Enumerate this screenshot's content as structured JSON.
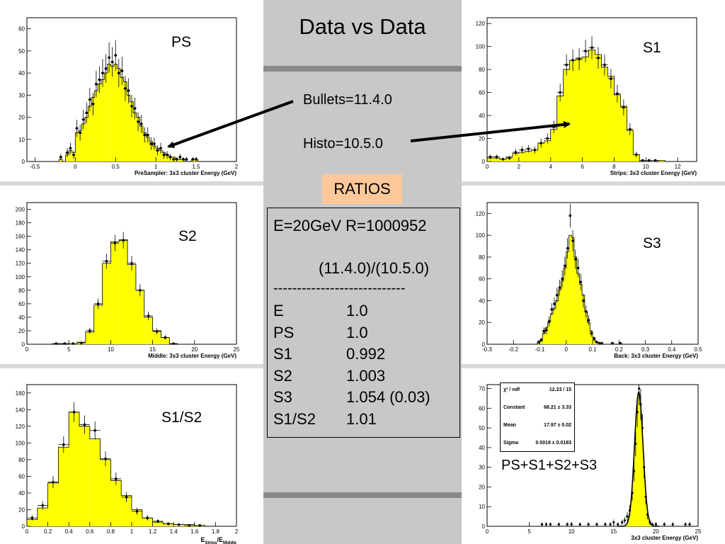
{
  "title": "Data vs Data",
  "labels": {
    "bullets": "Bullets=11.4.0",
    "histo": "Histo=10.5.0",
    "ratios_button": "RATIOS"
  },
  "ratios_box": {
    "header": "E=20GeV R=1000952",
    "subheader": "(11.4.0)/(10.5.0)",
    "divider": "----------------------------",
    "rows": [
      {
        "name": "E",
        "value": "1.0"
      },
      {
        "name": "PS",
        "value": "1.0"
      },
      {
        "name": "S1",
        "value": "0.992"
      },
      {
        "name": "S2",
        "value": "1.003"
      },
      {
        "name": "S3",
        "value": "1.054 (0.03)"
      },
      {
        "name": "S1/S2",
        "value": "1.01"
      }
    ]
  },
  "fit_stats": {
    "chi2_label": "χ² / ndf",
    "chi2_value": "12.23 / 15",
    "constant_label": "Constant",
    "constant_value": "68.21 ± 3.33",
    "mean_label": "Mean",
    "mean_value": "17.97 ± 0.02",
    "sigma_label": "Sigma",
    "sigma_value": "0.5018 ± 0.0183"
  },
  "colors": {
    "fill": "#ffff00",
    "arrow": "#000000",
    "ratios_bg": "#ffc89a"
  },
  "chart_data": [
    {
      "id": "ps",
      "type": "bar",
      "panel_label": "PS",
      "xlabel": "PreSampler: 3x3 cluster Energy (GeV)",
      "xlim": [
        -0.6,
        2.0
      ],
      "ylim": [
        0,
        65
      ],
      "xticks": [
        -0.5,
        0,
        0.5,
        1,
        1.5,
        2
      ],
      "xtick_labels": [
        "-0.5",
        "0",
        "0.5",
        "1",
        "1.5",
        "2"
      ],
      "yticks": [
        0,
        10,
        20,
        30,
        40,
        50,
        60
      ],
      "bin_start": -0.2,
      "bin_width": 0.04,
      "histo": [
        1,
        0,
        3,
        5,
        4,
        13,
        14,
        17,
        20,
        25,
        29,
        32,
        35,
        37,
        40,
        44,
        43,
        44,
        42,
        38,
        36,
        30,
        27,
        22,
        20,
        16,
        13,
        11,
        9,
        7,
        6,
        5,
        4,
        3,
        2,
        2,
        1,
        1,
        1,
        0,
        0,
        1,
        1,
        0,
        0
      ],
      "points": [
        2,
        0,
        4,
        6,
        3,
        15,
        13,
        19,
        22,
        28,
        26,
        35,
        37,
        40,
        42,
        47,
        45,
        48,
        40,
        41,
        33,
        32,
        25,
        24,
        18,
        17,
        12,
        12,
        8,
        8,
        5,
        6,
        3,
        3,
        2,
        1,
        1,
        2,
        1,
        1,
        0,
        1,
        1,
        0,
        0
      ]
    },
    {
      "id": "s1",
      "type": "bar",
      "panel_label": "S1",
      "xlabel": "Strips: 3x3 cluster Energy (GeV)",
      "xlim": [
        0,
        13.2
      ],
      "ylim": [
        0,
        125
      ],
      "xticks": [
        0,
        2,
        4,
        6,
        8,
        10,
        12
      ],
      "xtick_labels": [
        "0",
        "2",
        "4",
        "6",
        "8",
        "10",
        "12"
      ],
      "yticks": [
        0,
        20,
        40,
        60,
        80,
        100,
        120
      ],
      "bin_start": 0,
      "bin_width": 0.4,
      "histo": [
        3,
        3,
        2,
        4,
        7,
        8,
        9,
        10,
        16,
        18,
        28,
        57,
        80,
        88,
        90,
        91,
        97,
        93,
        82,
        74,
        58,
        48,
        27,
        6,
        0,
        0,
        0,
        1,
        0
      ],
      "points": [
        4,
        4,
        2,
        3,
        8,
        10,
        11,
        10,
        16,
        20,
        30,
        60,
        84,
        88,
        89,
        96,
        99,
        90,
        84,
        72,
        59,
        47,
        28,
        6,
        1,
        1,
        1,
        0,
        0
      ]
    },
    {
      "id": "s2",
      "type": "bar",
      "panel_label": "S2",
      "xlabel": "Middle: 3x3 cluster Energy (GeV)",
      "xlim": [
        0,
        25
      ],
      "ylim": [
        0,
        210
      ],
      "xticks": [
        0,
        5,
        10,
        15,
        20,
        25
      ],
      "xtick_labels": [
        "0",
        "5",
        "10",
        "15",
        "20",
        "25"
      ],
      "yticks": [
        0,
        20,
        40,
        60,
        80,
        100,
        120,
        140,
        160,
        180,
        200
      ],
      "bin_start": 3,
      "bin_width": 1,
      "histo": [
        0,
        0,
        1,
        3,
        18,
        58,
        120,
        152,
        155,
        118,
        80,
        40,
        20,
        10,
        0,
        0,
        0
      ],
      "points": [
        1,
        1,
        1,
        2,
        20,
        60,
        123,
        150,
        154,
        120,
        80,
        42,
        19,
        10,
        1,
        0,
        0
      ]
    },
    {
      "id": "s3",
      "type": "bar",
      "panel_label": "S3",
      "xlabel": "Back: 3x3 cluster Energy (GeV)",
      "xlim": [
        -0.3,
        0.5
      ],
      "ylim": [
        0,
        130
      ],
      "xticks": [
        -0.3,
        -0.2,
        -0.1,
        0,
        0.1,
        0.2,
        0.3,
        0.4,
        0.5
      ],
      "xtick_labels": [
        "-0.3",
        "-0.2",
        "-0.1",
        "0",
        "0.1",
        "0.2",
        "0.3",
        "0.4",
        "0.5"
      ],
      "yticks": [
        0,
        20,
        40,
        60,
        80,
        100,
        120
      ],
      "bin_start": -0.11,
      "bin_width": 0.01,
      "histo": [
        1,
        3,
        10,
        15,
        20,
        28,
        33,
        40,
        50,
        58,
        70,
        85,
        100,
        98,
        80,
        65,
        55,
        45,
        30,
        20,
        12,
        6,
        2,
        1,
        0,
        0,
        0,
        0,
        1,
        0,
        0,
        1
      ],
      "points": [
        2,
        4,
        12,
        13,
        21,
        32,
        37,
        45,
        52,
        60,
        72,
        88,
        118,
        95,
        78,
        70,
        57,
        40,
        30,
        22,
        10,
        5,
        2,
        1,
        1,
        0,
        0,
        0,
        1,
        0,
        0,
        1
      ]
    },
    {
      "id": "s1s2",
      "type": "bar",
      "panel_label": "S1/S2",
      "xlabel": "E_Strips/E_Middle",
      "xlim": [
        0,
        2
      ],
      "ylim": [
        0,
        170
      ],
      "xticks": [
        0,
        0.2,
        0.4,
        0.6,
        0.8,
        1,
        1.2,
        1.4,
        1.6,
        1.8,
        2
      ],
      "xtick_labels": [
        "0",
        "0.2",
        "0.4",
        "0.6",
        "0.8",
        "1",
        "1.2",
        "1.4",
        "1.6",
        "1.8",
        "2"
      ],
      "yticks": [
        0,
        20,
        40,
        60,
        80,
        100,
        120,
        140,
        160
      ],
      "bin_start": 0,
      "bin_width": 0.1,
      "histo": [
        8,
        22,
        52,
        95,
        137,
        120,
        105,
        80,
        55,
        37,
        20,
        10,
        5,
        3,
        2,
        2,
        1,
        0,
        0,
        0
      ],
      "points": [
        10,
        25,
        53,
        98,
        137,
        122,
        115,
        81,
        57,
        35,
        18,
        10,
        6,
        3,
        2,
        1,
        1,
        0,
        0,
        0
      ]
    },
    {
      "id": "total",
      "type": "scatter",
      "panel_label": "PS+S1+S2+S3",
      "xlabel": "3x3 cluster Energy (GeV)",
      "xlim": [
        0,
        25
      ],
      "ylim": [
        0,
        72
      ],
      "xticks": [
        0,
        5,
        10,
        15,
        20,
        25
      ],
      "xtick_labels": [
        "0",
        "5",
        "10",
        "15",
        "20",
        "25"
      ],
      "yticks": [
        0,
        10,
        20,
        30,
        40,
        50,
        60,
        70
      ],
      "fit": {
        "constant": 68.21,
        "mean": 17.97,
        "sigma": 0.5018
      },
      "points": [
        [
          6.5,
          1
        ],
        [
          7,
          1
        ],
        [
          7.5,
          1
        ],
        [
          8.5,
          1
        ],
        [
          9.5,
          1
        ],
        [
          10,
          1
        ],
        [
          11,
          1
        ],
        [
          12,
          1
        ],
        [
          13,
          1
        ],
        [
          14,
          1
        ],
        [
          14.6,
          1
        ],
        [
          15,
          2
        ],
        [
          15.5,
          1
        ],
        [
          16,
          2
        ],
        [
          16.3,
          3
        ],
        [
          16.6,
          5
        ],
        [
          16.9,
          8
        ],
        [
          17.2,
          17
        ],
        [
          17.4,
          28
        ],
        [
          17.6,
          42
        ],
        [
          17.8,
          58
        ],
        [
          18,
          70
        ],
        [
          18.2,
          62
        ],
        [
          18.4,
          50
        ],
        [
          18.6,
          30
        ],
        [
          18.8,
          15
        ],
        [
          19,
          6
        ],
        [
          19.3,
          2
        ],
        [
          19.6,
          1
        ],
        [
          20,
          1
        ],
        [
          21,
          1
        ],
        [
          22,
          1
        ],
        [
          23.5,
          1
        ],
        [
          24,
          1
        ]
      ]
    }
  ]
}
